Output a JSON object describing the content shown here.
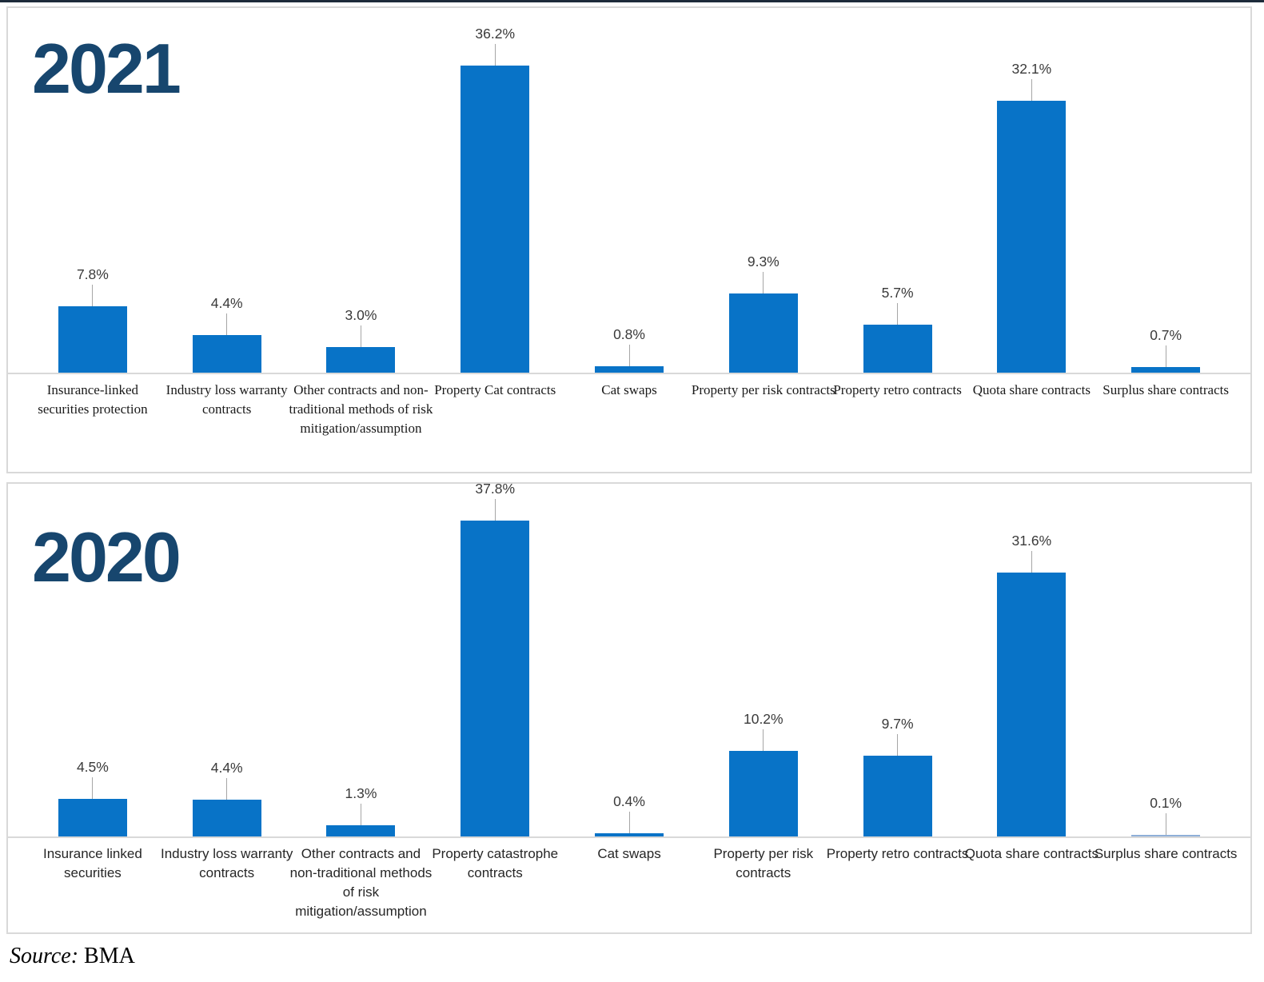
{
  "page": {
    "source_prefix": "Source:",
    "source_text": "BMA"
  },
  "colors": {
    "bar": "#0873c7",
    "tiny_bar": "#8fafd8",
    "title": "#17466e",
    "leader": "#a6a6a6",
    "axis": "#d9d9d9"
  },
  "chart_data": [
    {
      "type": "bar",
      "title": "2021",
      "categories": [
        "Insurance-linked securities protection",
        "Industry loss warranty contracts",
        "Other contracts and non-traditional methods of risk mitigation/assumption",
        "Property Cat contracts",
        "Cat swaps",
        "Property per risk contracts",
        "Property retro contracts",
        "Quota share contracts",
        "Surplus share contracts"
      ],
      "values": [
        7.8,
        4.4,
        3.0,
        36.2,
        0.8,
        9.3,
        5.7,
        32.1,
        0.7
      ],
      "data_labels": [
        "7.8%",
        "4.4%",
        "3.0%",
        "36.2%",
        "0.8%",
        "9.3%",
        "5.7%",
        "32.1%",
        "0.7%"
      ],
      "xlabel": "",
      "ylabel": "",
      "ylim": [
        0,
        40
      ],
      "grid": false,
      "legend": "none",
      "bar_color": "#0873c7",
      "data_label_position": "above with leader line"
    },
    {
      "type": "bar",
      "title": "2020",
      "categories": [
        "Insurance linked securities",
        "Industry loss warranty contracts",
        "Other contracts and non-traditional methods of risk mitigation/assumption",
        "Property catastrophe contracts",
        "Cat swaps",
        "Property per risk contracts",
        "Property retro contracts",
        "Quota share contracts",
        "Surplus share contracts"
      ],
      "values": [
        4.5,
        4.4,
        1.3,
        37.8,
        0.4,
        10.2,
        9.7,
        31.6,
        0.1
      ],
      "data_labels": [
        "4.5%",
        "4.4%",
        "1.3%",
        "37.8%",
        "0.4%",
        "10.2%",
        "9.7%",
        "31.6%",
        "0.1%"
      ],
      "xlabel": "",
      "ylabel": "",
      "ylim": [
        0,
        40
      ],
      "grid": false,
      "legend": "none",
      "bar_color": "#0873c7",
      "data_label_position": "above with leader line"
    }
  ]
}
